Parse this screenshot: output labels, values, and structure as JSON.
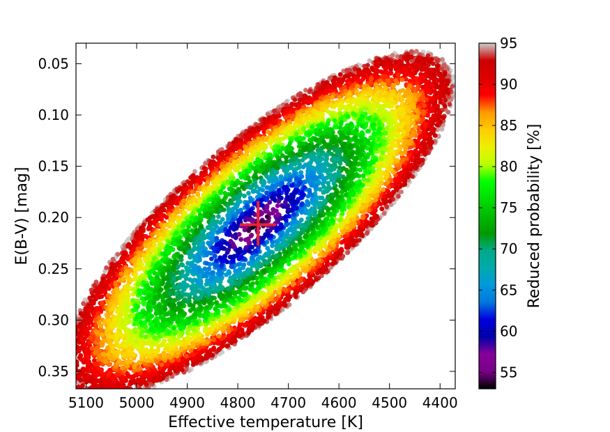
{
  "chart_data": {
    "type": "scatter",
    "title": "",
    "xlabel": "Effective temperature [K]",
    "ylabel": "E(B-V) [mag]",
    "xlim": [
      5120,
      4370
    ],
    "ylim": [
      0.367,
      0.03
    ],
    "x_inverted": true,
    "y_inverted": true,
    "grid": false,
    "x_ticks": [
      5100,
      5000,
      4900,
      4800,
      4700,
      4600,
      4500,
      4400
    ],
    "x_tick_labels": [
      "5100",
      "5000",
      "4900",
      "4800",
      "4700",
      "4600",
      "4500",
      "4400"
    ],
    "y_ticks": [
      0.05,
      0.1,
      0.15,
      0.2,
      0.25,
      0.3,
      0.35
    ],
    "y_tick_labels": [
      "0.05",
      "0.10",
      "0.15",
      "0.20",
      "0.25",
      "0.30",
      "0.35"
    ],
    "colorbar": {
      "label": "Reduced probability [%]",
      "range": [
        53,
        95
      ],
      "ticks": [
        55,
        60,
        65,
        70,
        75,
        80,
        85,
        90,
        95
      ],
      "tick_labels": [
        "55",
        "60",
        "65",
        "70",
        "75",
        "80",
        "85",
        "90",
        "95"
      ],
      "colormap": "nipy_spectral"
    },
    "distribution": {
      "center": [
        4760,
        0.207
      ],
      "major_axis_end_upper": [
        4380,
        0.045
      ],
      "major_axis_end_lower": [
        5110,
        0.355
      ],
      "points_color_encodes": "reduced probability (%)",
      "approx_point_count": 9000
    },
    "marker": {
      "type": "cross",
      "x": 4760,
      "y": 0.207,
      "color": "#e8233c"
    }
  }
}
